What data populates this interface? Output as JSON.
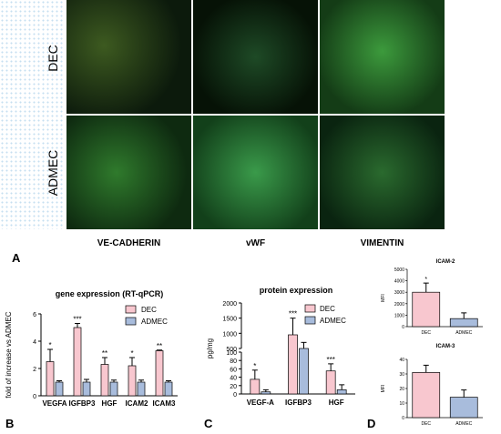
{
  "figure": {
    "panel_letters": [
      "A",
      "B",
      "C",
      "D"
    ],
    "row_labels": [
      "DEC",
      "ADMEC"
    ],
    "column_labels": [
      "VE-CADHERIN",
      "vWF",
      "VIMENTIN"
    ],
    "colors": {
      "dec": "#f8c7cf",
      "admec": "#a8bcdc",
      "nuclei": "#2a56ff",
      "fluor": "#2bd24a"
    }
  },
  "chart_data": [
    {
      "type": "bar",
      "panel": "B",
      "title": "gene expression (RT-qPCR)",
      "ylabel": "fold of increase vs ADMEC",
      "xlabel": "",
      "categories": [
        "VEGFA",
        "IGFBP3",
        "HGF",
        "ICAM2",
        "ICAM3"
      ],
      "series": [
        {
          "name": "DEC",
          "values": [
            2.5,
            5.0,
            2.3,
            2.2,
            3.3
          ],
          "errors": [
            0.9,
            0.3,
            0.5,
            0.6,
            0.05
          ]
        },
        {
          "name": "ADMEC",
          "values": [
            1.0,
            1.0,
            1.0,
            1.0,
            1.0
          ],
          "errors": [
            0.1,
            0.2,
            0.15,
            0.15,
            0.1
          ]
        }
      ],
      "significance": [
        "*",
        "***",
        "**",
        "*",
        "**"
      ],
      "yticks": [
        0,
        2,
        4,
        6
      ],
      "ylim": [
        0,
        6
      ],
      "legend": "top-right",
      "grid": false
    },
    {
      "type": "bar",
      "panel": "C",
      "title": "protein expression",
      "ylabel": "pg/mg",
      "xlabel": "",
      "categories": [
        "VEGF-A",
        "IGFBP3",
        "HGF"
      ],
      "series": [
        {
          "name": "DEC",
          "values": [
            35,
            950,
            55
          ],
          "errors": [
            22,
            550,
            17
          ]
        },
        {
          "name": "ADMEC",
          "values": [
            5,
            500,
            10
          ],
          "errors": [
            5,
            200,
            12
          ]
        }
      ],
      "significance": [
        "*",
        "***",
        "***"
      ],
      "yticks": [
        0,
        20,
        40,
        60,
        80,
        100,
        500,
        1000,
        1500,
        2000
      ],
      "ylim": [
        0,
        2000
      ],
      "axis_break": [
        100,
        500
      ],
      "legend": "top-right",
      "grid": false
    },
    {
      "type": "bar",
      "panel": "D",
      "title": "ICAM-2",
      "ylabel": "MFI",
      "xlabel": "",
      "categories": [
        "DEC",
        "ADMEC"
      ],
      "values": [
        3000,
        700
      ],
      "errors": [
        800,
        500
      ],
      "significance": [
        "*",
        ""
      ],
      "yticks": [
        0,
        1000,
        2000,
        3000,
        4000,
        5000
      ],
      "ylim": [
        0,
        5000
      ],
      "grid": false
    },
    {
      "type": "bar",
      "panel": "D",
      "title": "ICAM-3",
      "ylabel": "MFI",
      "xlabel": "",
      "categories": [
        "DEC",
        "ADMEC"
      ],
      "values": [
        31,
        14
      ],
      "errors": [
        5,
        5
      ],
      "significance": [
        "",
        ""
      ],
      "yticks": [
        0,
        10,
        20,
        30,
        40
      ],
      "ylim": [
        0,
        40
      ],
      "grid": false
    }
  ]
}
